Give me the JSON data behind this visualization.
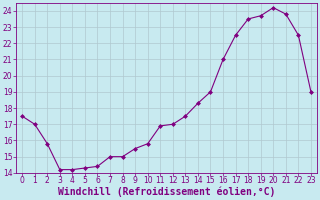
{
  "x": [
    0,
    1,
    2,
    3,
    4,
    5,
    6,
    7,
    8,
    9,
    10,
    11,
    12,
    13,
    14,
    15,
    16,
    17,
    18,
    19,
    20,
    21,
    22,
    23
  ],
  "y": [
    17.5,
    17.0,
    15.8,
    14.2,
    14.2,
    14.3,
    14.4,
    15.0,
    15.0,
    15.5,
    15.8,
    16.9,
    17.0,
    17.5,
    18.3,
    19.0,
    21.0,
    22.5,
    23.5,
    23.7,
    24.2,
    23.8,
    22.5,
    19.0
  ],
  "line_color": "#800080",
  "marker": "D",
  "marker_size": 2.0,
  "bg_color": "#c8eaf0",
  "grid_color": "#b0c8d0",
  "xlabel": "Windchill (Refroidissement éolien,°C)",
  "ylabel": "",
  "ylim": [
    14,
    24.5
  ],
  "xlim": [
    -0.5,
    23.5
  ],
  "yticks": [
    14,
    15,
    16,
    17,
    18,
    19,
    20,
    21,
    22,
    23,
    24
  ],
  "xticks": [
    0,
    1,
    2,
    3,
    4,
    5,
    6,
    7,
    8,
    9,
    10,
    11,
    12,
    13,
    14,
    15,
    16,
    17,
    18,
    19,
    20,
    21,
    22,
    23
  ],
  "tick_color": "#800080",
  "label_color": "#800080",
  "tick_fontsize": 5.5,
  "xlabel_fontsize": 7.0,
  "linewidth": 0.8
}
